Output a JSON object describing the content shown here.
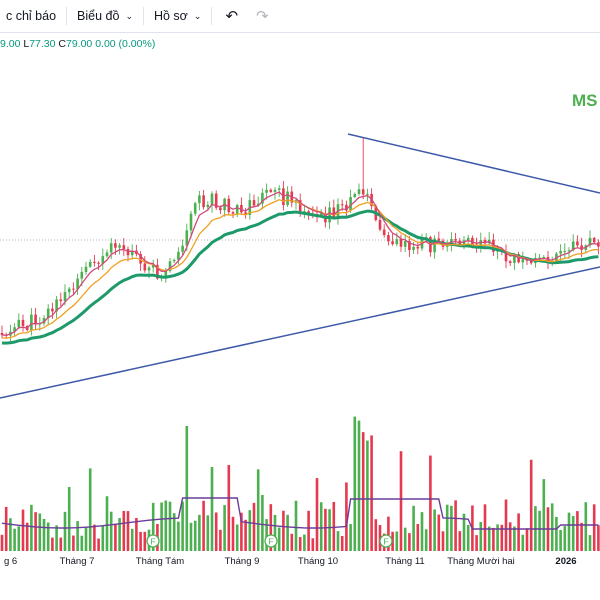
{
  "toolbar": {
    "indicators_label": "c chỉ báo",
    "chart_label": "Biểu đồ",
    "profile_label": "Hồ sơ"
  },
  "ohlc": {
    "o_tail": "9.00",
    "l_label": "L",
    "l_value": "77.30",
    "c_label": "C",
    "c_value": "79.00",
    "change": "0.00 (0.00%)"
  },
  "ticker": "MS",
  "colors": {
    "up": "#4caf50",
    "down": "#e53950",
    "ema_fast": "#d04a7a",
    "ema_mid": "#f0a020",
    "ema_slow": "#1e9a6a",
    "trendline": "#3d5aa8",
    "volume_ma": "#6a3d9a"
  },
  "x_axis": {
    "labels": [
      "g 6",
      "Tháng 7",
      "Tháng Tám",
      "Tháng 9",
      "Tháng 10",
      "Tháng 11",
      "Tháng Mười hai",
      "2026"
    ]
  },
  "events": [
    "F",
    "F",
    "F"
  ]
}
